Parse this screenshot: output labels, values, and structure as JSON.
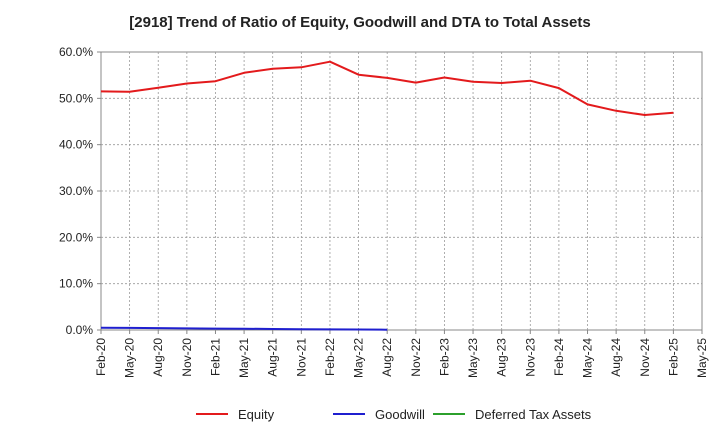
{
  "chart_data": {
    "type": "line",
    "title": "[2918]  Trend of Ratio of Equity, Goodwill and DTA to Total Assets",
    "xlabel": "",
    "ylabel": "",
    "ylim": [
      0,
      60
    ],
    "y_ticks": [
      "0.0%",
      "10.0%",
      "20.0%",
      "30.0%",
      "40.0%",
      "50.0%",
      "60.0%"
    ],
    "x_tick_labels": [
      "Feb-20",
      "May-20",
      "Aug-20",
      "Nov-20",
      "Feb-21",
      "May-21",
      "Aug-21",
      "Nov-21",
      "Feb-22",
      "May-22",
      "Aug-22",
      "Nov-22",
      "Feb-23",
      "May-23",
      "Aug-23",
      "Nov-23",
      "Feb-24",
      "May-24",
      "Aug-24",
      "Nov-24",
      "Feb-25",
      "May-25"
    ],
    "grid": true,
    "legend_position": "bottom",
    "series": [
      {
        "name": "Equity",
        "color": "#e31a1c",
        "x": [
          "Feb-20",
          "May-20",
          "Aug-20",
          "Nov-20",
          "Feb-21",
          "May-21",
          "Aug-21",
          "Nov-21",
          "Feb-22",
          "May-22",
          "Aug-22",
          "Nov-22",
          "Feb-23",
          "May-23",
          "Aug-23",
          "Nov-23",
          "Feb-24",
          "May-24",
          "Aug-24",
          "Nov-24",
          "Feb-25"
        ],
        "values": [
          51.5,
          51.4,
          52.3,
          53.2,
          53.7,
          55.5,
          56.4,
          56.7,
          57.9,
          55.1,
          54.4,
          53.4,
          54.5,
          53.6,
          53.3,
          53.8,
          52.2,
          48.7,
          47.3,
          46.4,
          46.9
        ]
      },
      {
        "name": "Goodwill",
        "color": "#1f1fcf",
        "x": [
          "Feb-20",
          "May-20",
          "Aug-20",
          "Nov-20",
          "Feb-21",
          "May-21",
          "Aug-21",
          "Nov-21",
          "Feb-22",
          "May-22",
          "Aug-22"
        ],
        "values": [
          0.5,
          0.45,
          0.4,
          0.35,
          0.3,
          0.27,
          0.22,
          0.18,
          0.14,
          0.1,
          0.06
        ]
      },
      {
        "name": "Deferred Tax Assets",
        "color": "#2ca02c",
        "x": [],
        "values": []
      }
    ]
  }
}
